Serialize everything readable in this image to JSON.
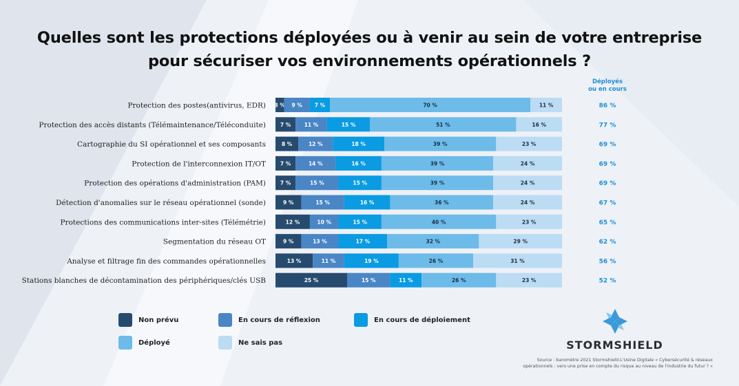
{
  "title_line1": "Quelles sont les protections déployées ou à venir au sein de votre entreprise",
  "title_line2": "pour sécuriser vos environnements opérationnels ?",
  "total_header_line1": "Déployés",
  "total_header_line2": "ou en cours",
  "colors": {
    "non_prevu": "#274b6e",
    "reflexion": "#4a86c6",
    "deploiement": "#0a9be3",
    "deploye": "#6dbbe9",
    "ne_sais_pas": "#bcdcf4",
    "totals": "#1f8fd6"
  },
  "legend": [
    {
      "key": "non_prevu",
      "label": "Non prévu"
    },
    {
      "key": "reflexion",
      "label": "En cours de réflexion"
    },
    {
      "key": "deploiement",
      "label": "En cours de déploiement"
    },
    {
      "key": "deploye",
      "label": "Déployé"
    },
    {
      "key": "ne_sais_pas",
      "label": "Ne sais pas"
    }
  ],
  "brand": {
    "name": "STORMSHIELD",
    "logo_icon": "stormshield-logo-icon"
  },
  "source_line1": "Source : baromètre 2021 Stormshield-L'Usine Digitale « Cybersécurité & réseaux",
  "source_line2": "opérationnels : vers une prise en compte du risque au niveau de l'industrie du futur ? »",
  "chart_data": {
    "type": "bar",
    "stacked": true,
    "orientation": "horizontal",
    "unit": "%",
    "categories": [
      "Protection des postes(antivirus, EDR)",
      "Protection des accès distants (Télémaintenance/Téléconduite)",
      "Cartographie du SI opérationnel et ses composants",
      "Protection de l'interconnexion IT/OT",
      "Protection des opérations d'administration (PAM)",
      "Détection d'anomalies sur le réseau opérationnel (sonde)",
      "Protections des communications inter-sites (Télémétrie)",
      "Segmentation du réseau OT",
      "Analyse et filtrage fin des commandes opérationnelles",
      "Stations blanches de décontamination des périphériques/clés USB"
    ],
    "series": [
      {
        "name": "Non prévu",
        "key": "non_prevu",
        "values": [
          3,
          7,
          8,
          7,
          7,
          9,
          12,
          9,
          13,
          25
        ]
      },
      {
        "name": "En cours de réflexion",
        "key": "reflexion",
        "values": [
          9,
          11,
          12,
          14,
          15,
          15,
          10,
          13,
          11,
          15
        ]
      },
      {
        "name": "En cours de déploiement",
        "key": "deploiement",
        "values": [
          7,
          15,
          18,
          16,
          15,
          16,
          15,
          17,
          19,
          11
        ]
      },
      {
        "name": "Déployé",
        "key": "deploye",
        "values": [
          70,
          51,
          39,
          39,
          39,
          36,
          40,
          32,
          26,
          26
        ]
      },
      {
        "name": "Ne sais pas",
        "key": "ne_sais_pas",
        "values": [
          11,
          16,
          23,
          24,
          24,
          24,
          23,
          29,
          31,
          23
        ]
      }
    ],
    "totals": {
      "name": "Déployés ou en cours",
      "values": [
        86,
        77,
        69,
        69,
        69,
        67,
        65,
        62,
        56,
        52
      ]
    }
  }
}
